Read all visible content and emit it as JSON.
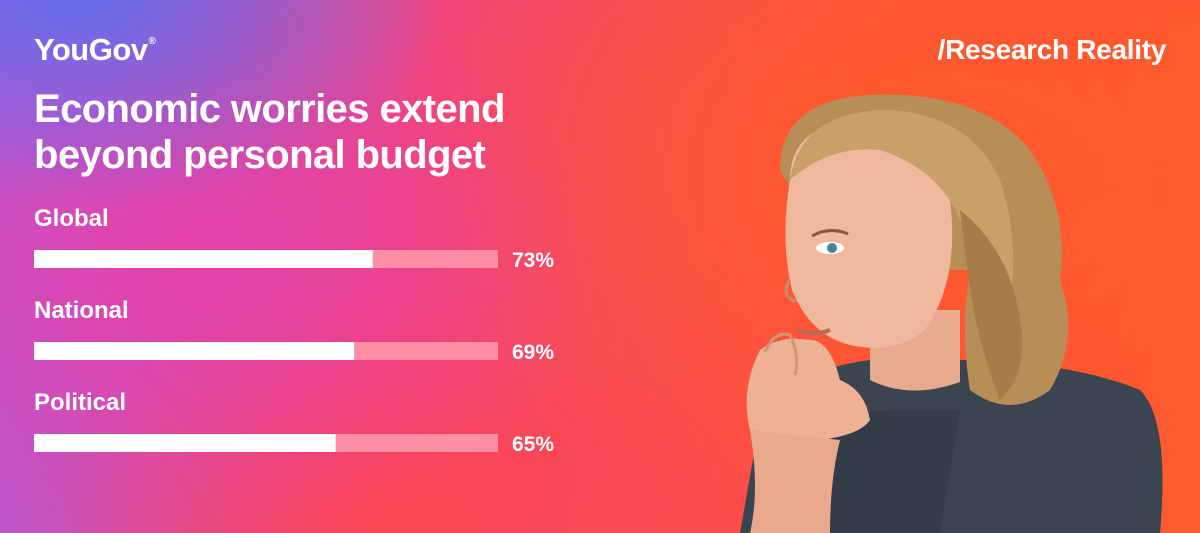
{
  "brand": {
    "logo_text": "YouGov",
    "registered_mark": "®"
  },
  "series_tag": "/Research Reality",
  "headline": {
    "line1": "Economic worries extend",
    "line2": "beyond personal budget"
  },
  "colors": {
    "bar_fill": "#ffffff",
    "bar_track": "#ff8da3"
  },
  "chart_data": {
    "type": "bar",
    "orientation": "horizontal",
    "categories": [
      "Global",
      "National",
      "Political"
    ],
    "values": [
      73,
      69,
      65
    ],
    "value_labels": [
      "73%",
      "69%",
      "65%"
    ],
    "unit": "%",
    "xlim": [
      0,
      100
    ],
    "title": "Economic worries extend beyond personal budget",
    "grid": false,
    "legend": "none"
  },
  "photo": {
    "subject": "woman-thinking-photo"
  }
}
